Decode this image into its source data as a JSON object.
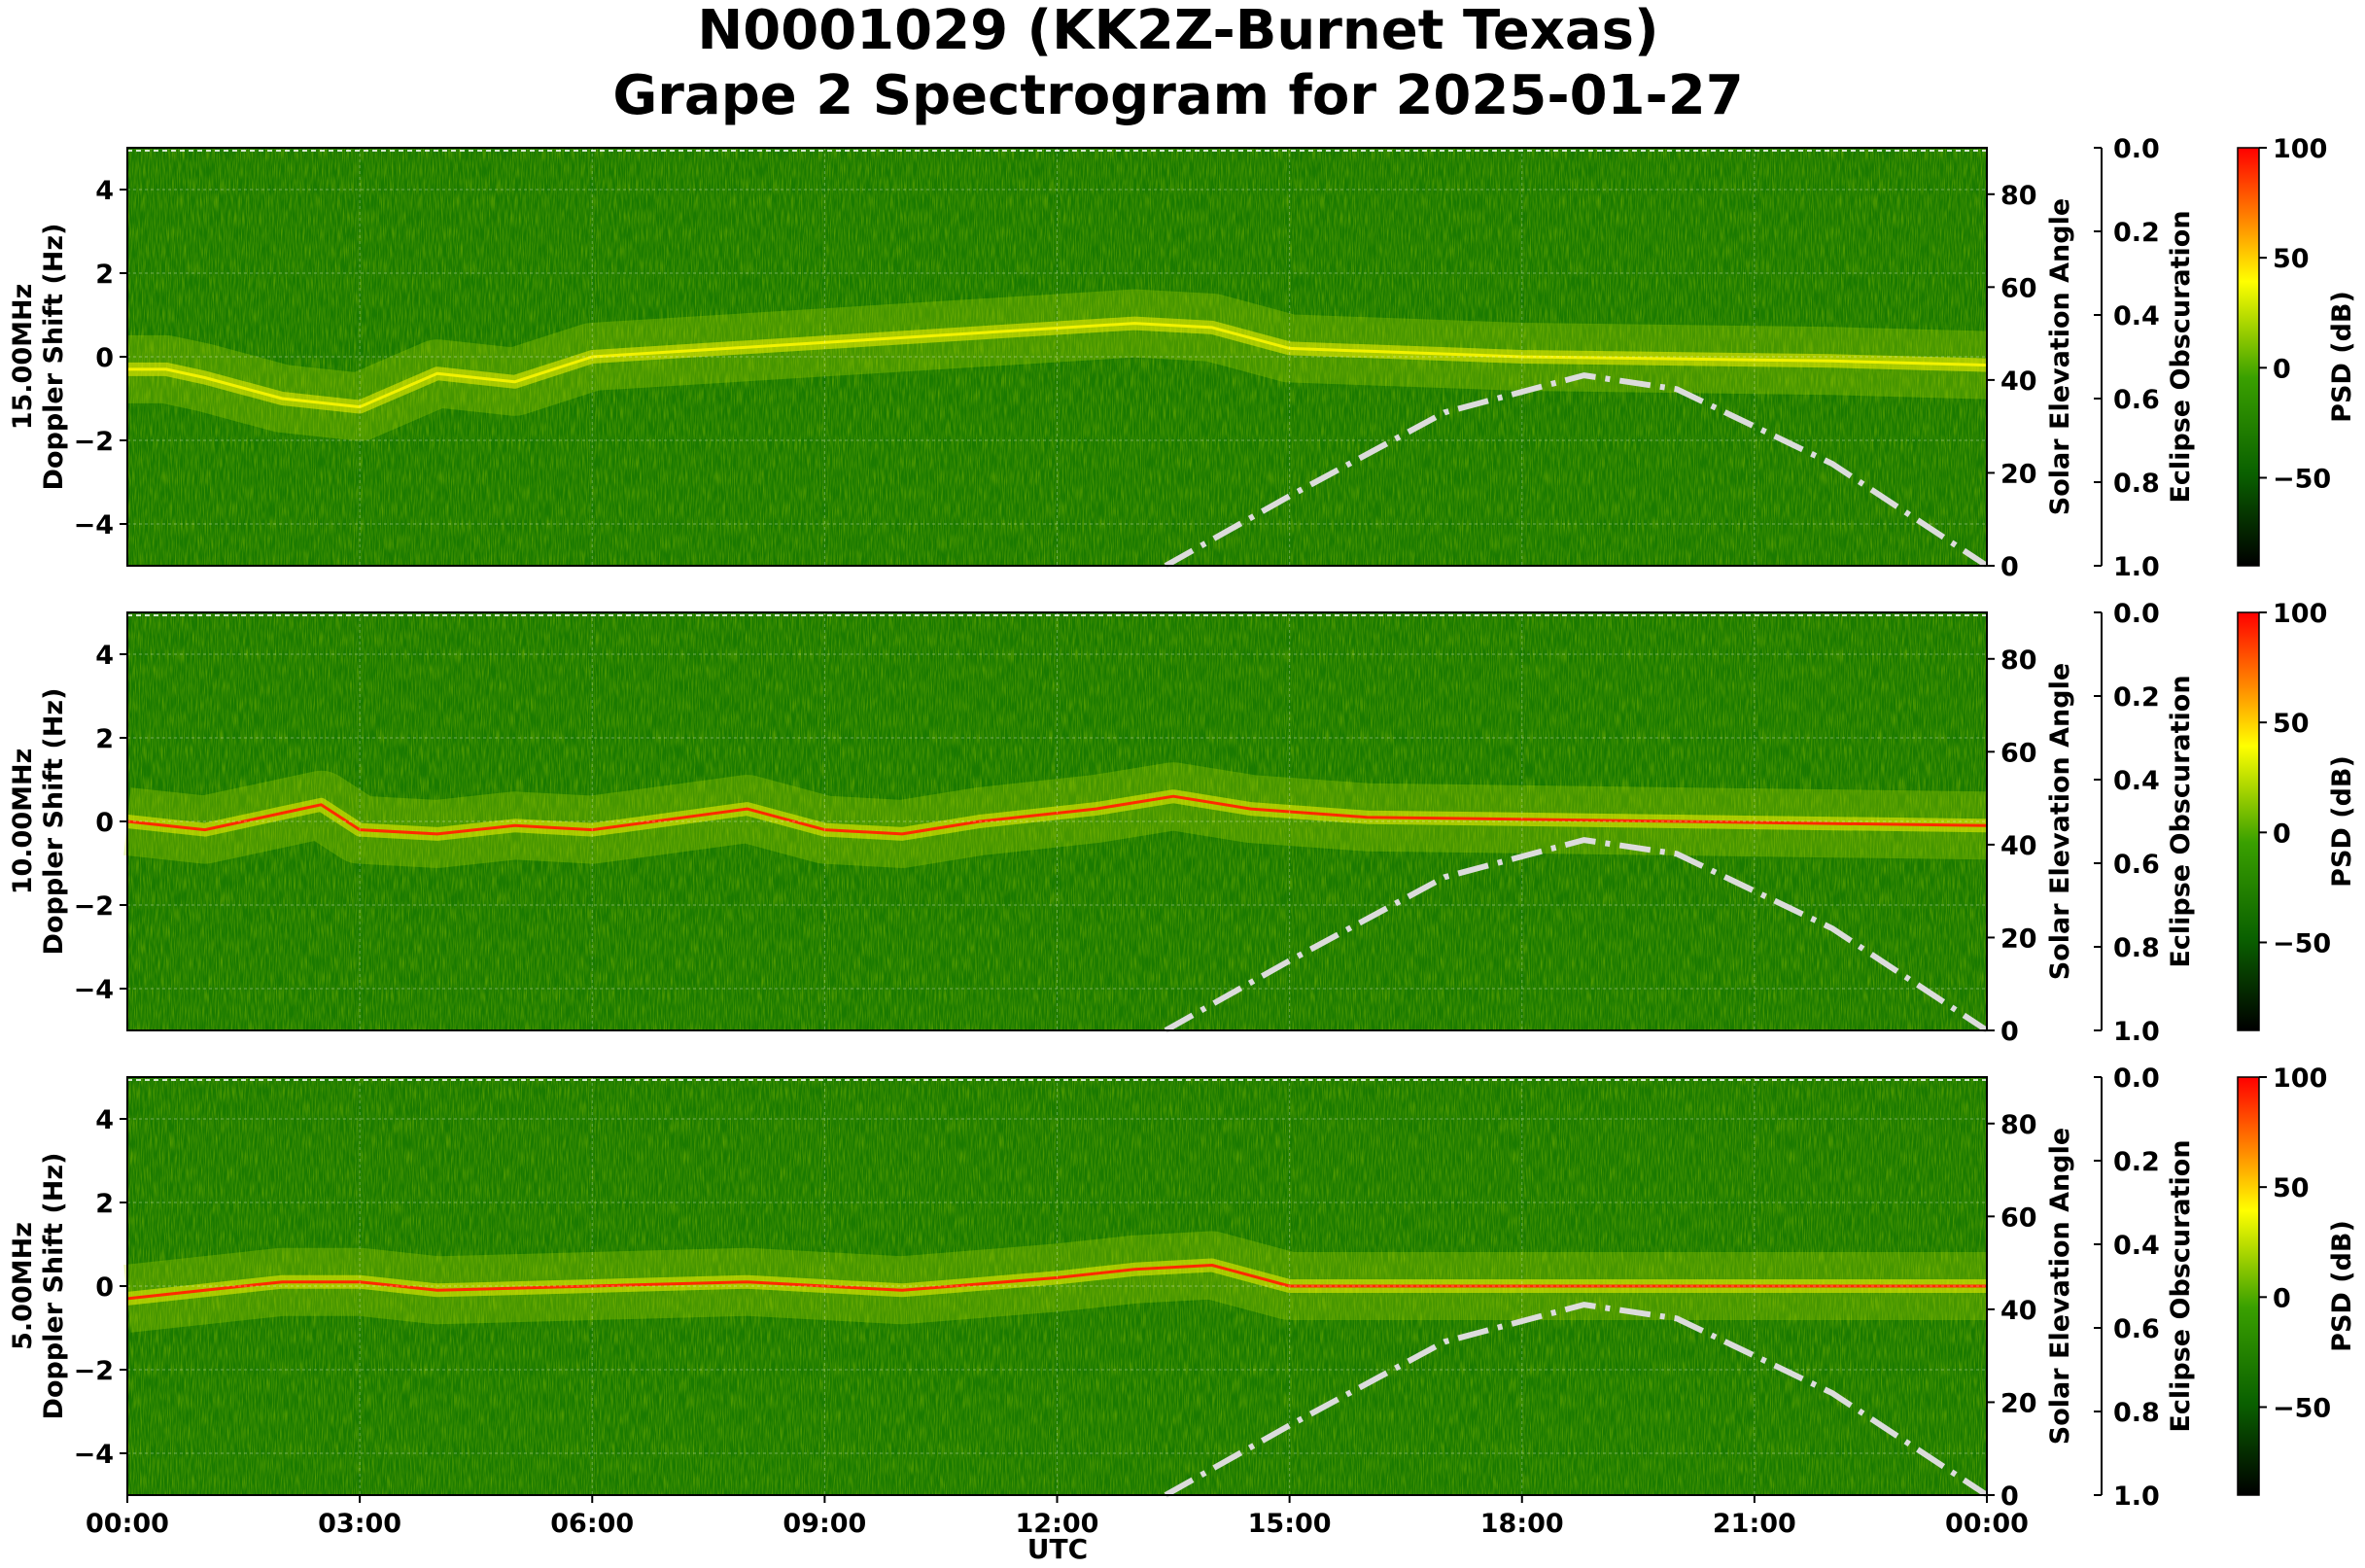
{
  "title_line1": "N0001029 (KK2Z-Burnet Texas)",
  "title_line2": "Grape 2 Spectrogram for 2025-01-27",
  "chart_data": [
    {
      "type": "heatmap",
      "band": "15.00MHz",
      "ylabel_line1": "15.00MHz",
      "ylabel_line2": "Doppler Shift (Hz)",
      "ylim": [
        -5,
        5
      ],
      "yticks": [
        "4",
        "2",
        "0",
        "−2",
        "−4"
      ],
      "ytick_values": [
        4,
        2,
        0,
        -2,
        -4
      ],
      "solar_elevation": {
        "label": "Solar Elevation Angle",
        "ylim": [
          0,
          90
        ],
        "ticks": [
          "80",
          "60",
          "40",
          "20",
          "0"
        ],
        "tick_values": [
          80,
          60,
          40,
          20,
          0
        ]
      },
      "eclipse_obscuration": {
        "label": "Eclipse Obscuration",
        "ylim": [
          1.0,
          0.0
        ],
        "ticks": [
          "0.0",
          "0.2",
          "0.4",
          "0.6",
          "0.8",
          "1.0"
        ],
        "tick_values": [
          0,
          0.2,
          0.4,
          0.6,
          0.8,
          1.0
        ]
      },
      "colorbar": {
        "label": "PSD (dB)",
        "range": [
          -90,
          100
        ],
        "ticks": [
          "100",
          "50",
          "0",
          "−50"
        ],
        "tick_values": [
          100,
          50,
          0,
          -50
        ]
      },
      "doppler_trace_hz": [
        [
          0,
          -0.3
        ],
        [
          0.5,
          -0.3
        ],
        [
          1,
          -0.5
        ],
        [
          2,
          -1.0
        ],
        [
          3,
          -1.2
        ],
        [
          4,
          -0.4
        ],
        [
          5,
          -0.6
        ],
        [
          6,
          0.0
        ],
        [
          13,
          0.8
        ],
        [
          14,
          0.7
        ],
        [
          15,
          0.2
        ],
        [
          18,
          0.0
        ],
        [
          22,
          -0.1
        ],
        [
          24,
          -0.2
        ]
      ],
      "solar_elevation_curve_deg": [
        [
          13.4,
          0
        ],
        [
          15,
          15
        ],
        [
          17,
          33
        ],
        [
          18.8,
          41
        ],
        [
          20,
          38
        ],
        [
          22,
          22
        ],
        [
          24,
          0
        ]
      ]
    },
    {
      "type": "heatmap",
      "band": "10.00MHz",
      "ylabel_line1": "10.00MHz",
      "ylabel_line2": "Doppler Shift (Hz)",
      "ylim": [
        -5,
        5
      ],
      "yticks": [
        "4",
        "2",
        "0",
        "−2",
        "−4"
      ],
      "ytick_values": [
        4,
        2,
        0,
        -2,
        -4
      ],
      "solar_elevation": {
        "label": "Solar Elevation Angle",
        "ylim": [
          0,
          90
        ],
        "ticks": [
          "80",
          "60",
          "40",
          "20",
          "0"
        ],
        "tick_values": [
          80,
          60,
          40,
          20,
          0
        ]
      },
      "eclipse_obscuration": {
        "label": "Eclipse Obscuration",
        "ylim": [
          1.0,
          0.0
        ],
        "ticks": [
          "0.0",
          "0.2",
          "0.4",
          "0.6",
          "0.8",
          "1.0"
        ],
        "tick_values": [
          0,
          0.2,
          0.4,
          0.6,
          0.8,
          1.0
        ]
      },
      "colorbar": {
        "label": "PSD (dB)",
        "range": [
          -90,
          100
        ],
        "ticks": [
          "100",
          "50",
          "0",
          "−50"
        ],
        "tick_values": [
          100,
          50,
          0,
          -50
        ]
      },
      "doppler_trace_hz": [
        [
          0,
          0.0
        ],
        [
          1,
          -0.2
        ],
        [
          2,
          0.2
        ],
        [
          2.5,
          0.4
        ],
        [
          3,
          -0.2
        ],
        [
          4,
          -0.3
        ],
        [
          5,
          -0.1
        ],
        [
          6,
          -0.2
        ],
        [
          8,
          0.3
        ],
        [
          9,
          -0.2
        ],
        [
          10,
          -0.3
        ],
        [
          11,
          0.0
        ],
        [
          12.5,
          0.3
        ],
        [
          13.5,
          0.6
        ],
        [
          14.5,
          0.3
        ],
        [
          16,
          0.1
        ],
        [
          20,
          0.0
        ],
        [
          24,
          -0.1
        ]
      ],
      "solar_elevation_curve_deg": [
        [
          13.4,
          0
        ],
        [
          15,
          15
        ],
        [
          17,
          33
        ],
        [
          18.8,
          41
        ],
        [
          20,
          38
        ],
        [
          22,
          22
        ],
        [
          24,
          0
        ]
      ]
    },
    {
      "type": "heatmap",
      "band": "5.00MHz",
      "ylabel_line1": "5.00MHz",
      "ylabel_line2": "Doppler Shift (Hz)",
      "ylim": [
        -5,
        5
      ],
      "yticks": [
        "4",
        "2",
        "0",
        "−2",
        "−4"
      ],
      "ytick_values": [
        4,
        2,
        0,
        -2,
        -4
      ],
      "solar_elevation": {
        "label": "Solar Elevation Angle",
        "ylim": [
          0,
          90
        ],
        "ticks": [
          "80",
          "60",
          "40",
          "20",
          "0"
        ],
        "tick_values": [
          80,
          60,
          40,
          20,
          0
        ]
      },
      "eclipse_obscuration": {
        "label": "Eclipse Obscuration",
        "ylim": [
          1.0,
          0.0
        ],
        "ticks": [
          "0.0",
          "0.2",
          "0.4",
          "0.6",
          "0.8",
          "1.0"
        ],
        "tick_values": [
          0,
          0.2,
          0.4,
          0.6,
          0.8,
          1.0
        ]
      },
      "colorbar": {
        "label": "PSD (dB)",
        "range": [
          -90,
          100
        ],
        "ticks": [
          "100",
          "50",
          "0",
          "−50"
        ],
        "tick_values": [
          100,
          50,
          0,
          -50
        ]
      },
      "doppler_trace_hz": [
        [
          0,
          -0.3
        ],
        [
          1,
          -0.1
        ],
        [
          2,
          0.1
        ],
        [
          3,
          0.1
        ],
        [
          4,
          -0.1
        ],
        [
          6,
          0.0
        ],
        [
          8,
          0.1
        ],
        [
          10,
          -0.1
        ],
        [
          12,
          0.2
        ],
        [
          13,
          0.4
        ],
        [
          14,
          0.5
        ],
        [
          15,
          0.0
        ],
        [
          24,
          0.0
        ]
      ],
      "solar_elevation_curve_deg": [
        [
          13.4,
          0
        ],
        [
          15,
          15
        ],
        [
          17,
          33
        ],
        [
          18.8,
          41
        ],
        [
          20,
          38
        ],
        [
          22,
          22
        ],
        [
          24,
          0
        ]
      ]
    }
  ],
  "xaxis": {
    "label": "UTC",
    "ticks": [
      "00:00",
      "03:00",
      "06:00",
      "09:00",
      "12:00",
      "15:00",
      "18:00",
      "21:00",
      "00:00"
    ],
    "tick_hours": [
      0,
      3,
      6,
      9,
      12,
      15,
      18,
      21,
      24
    ]
  },
  "colors": {
    "background_green": "#1a7a00",
    "trace_yellow": "#f2f200",
    "trace_red": "#ff2a00",
    "solar_curve": "#dcdcdc"
  }
}
